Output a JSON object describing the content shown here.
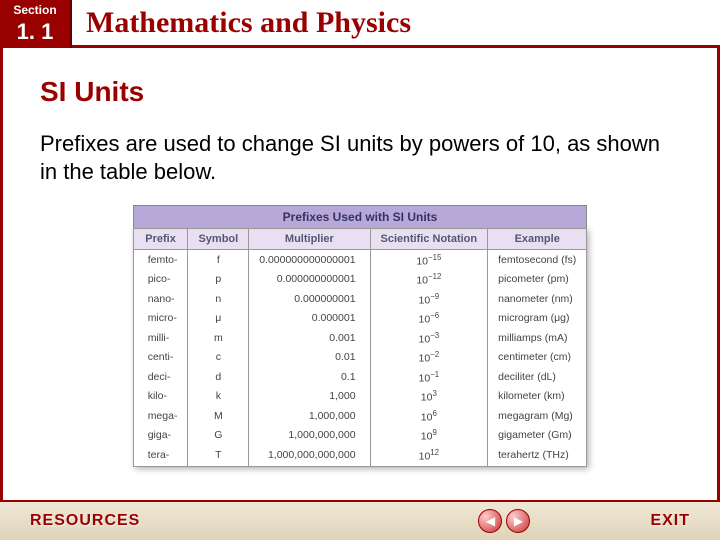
{
  "header": {
    "section_label": "Section",
    "section_number": "1. 1",
    "chapter_title": "Mathematics and Physics"
  },
  "content": {
    "subtitle": "SI Units",
    "body": "Prefixes are used to change SI units by powers of 10, as shown in the table below."
  },
  "table": {
    "caption": "Prefixes Used with SI Units",
    "columns": [
      "Prefix",
      "Symbol",
      "Multiplier",
      "Scientific Notation",
      "Example"
    ],
    "rows": [
      {
        "prefix": "femto-",
        "symbol": "f",
        "multiplier": "0.000000000000001",
        "sci_base": "10",
        "sci_exp": "−15",
        "example": "femtosecond (fs)"
      },
      {
        "prefix": "pico-",
        "symbol": "p",
        "multiplier": "0.000000000001",
        "sci_base": "10",
        "sci_exp": "−12",
        "example": "picometer (pm)"
      },
      {
        "prefix": "nano-",
        "symbol": "n",
        "multiplier": "0.000000001",
        "sci_base": "10",
        "sci_exp": "−9",
        "example": "nanometer (nm)"
      },
      {
        "prefix": "micro-",
        "symbol": "μ",
        "multiplier": "0.000001",
        "sci_base": "10",
        "sci_exp": "−6",
        "example": "microgram (μg)"
      },
      {
        "prefix": "milli-",
        "symbol": "m",
        "multiplier": "0.001",
        "sci_base": "10",
        "sci_exp": "−3",
        "example": "milliamps (mA)"
      },
      {
        "prefix": "centi-",
        "symbol": "c",
        "multiplier": "0.01",
        "sci_base": "10",
        "sci_exp": "−2",
        "example": "centimeter (cm)"
      },
      {
        "prefix": "deci-",
        "symbol": "d",
        "multiplier": "0.1",
        "sci_base": "10",
        "sci_exp": "−1",
        "example": "deciliter (dL)"
      },
      {
        "prefix": "kilo-",
        "symbol": "k",
        "multiplier": "1,000",
        "sci_base": "10",
        "sci_exp": "3",
        "example": "kilometer (km)"
      },
      {
        "prefix": "mega-",
        "symbol": "M",
        "multiplier": "1,000,000",
        "sci_base": "10",
        "sci_exp": "6",
        "example": "megagram (Mg)"
      },
      {
        "prefix": "giga-",
        "symbol": "G",
        "multiplier": "1,000,000,000",
        "sci_base": "10",
        "sci_exp": "9",
        "example": "gigameter (Gm)"
      },
      {
        "prefix": "tera-",
        "symbol": "T",
        "multiplier": "1,000,000,000,000",
        "sci_base": "10",
        "sci_exp": "12",
        "example": "terahertz (THz)"
      }
    ]
  },
  "footer": {
    "resources": "RESOURCES",
    "exit": "EXIT",
    "prev": "◀",
    "next": "▶"
  }
}
